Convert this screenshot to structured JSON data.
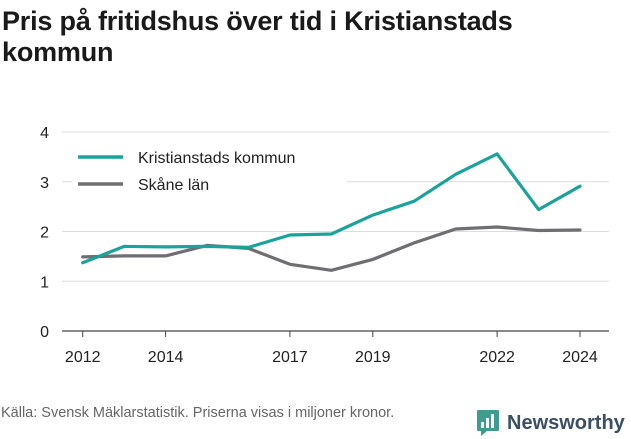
{
  "title": "Pris på fritidshus över tid i Kristianstads kommun",
  "source": "Källa: Svensk Mäklarstatistik. Priserna visas i miljoner kronor.",
  "brand": "Newsworthy",
  "chart_data": {
    "type": "line",
    "title": "Pris på fritidshus över tid i Kristianstads kommun",
    "xlabel": "",
    "ylabel": "",
    "xlim": [
      2011.5,
      2024.7
    ],
    "ylim": [
      0,
      4
    ],
    "x_ticks": [
      2012,
      2014,
      2017,
      2019,
      2022,
      2024
    ],
    "y_ticks": [
      0,
      1,
      2,
      3,
      4
    ],
    "grid": "horizontal",
    "legend_position": "top-left",
    "x": [
      2012,
      2013,
      2014,
      2015,
      2016,
      2017,
      2018,
      2019,
      2020,
      2021,
      2022,
      2023,
      2024
    ],
    "series": [
      {
        "name": "Kristianstads kommun",
        "color": "#1aa39a",
        "values": [
          1.37,
          1.7,
          1.69,
          1.7,
          1.68,
          1.93,
          1.95,
          2.33,
          2.61,
          3.15,
          3.56,
          2.44,
          2.91
        ]
      },
      {
        "name": "Skåne län",
        "color": "#6e6e73",
        "values": [
          1.49,
          1.51,
          1.51,
          1.72,
          1.66,
          1.34,
          1.22,
          1.44,
          1.77,
          2.05,
          2.09,
          2.02,
          2.03
        ]
      }
    ]
  }
}
